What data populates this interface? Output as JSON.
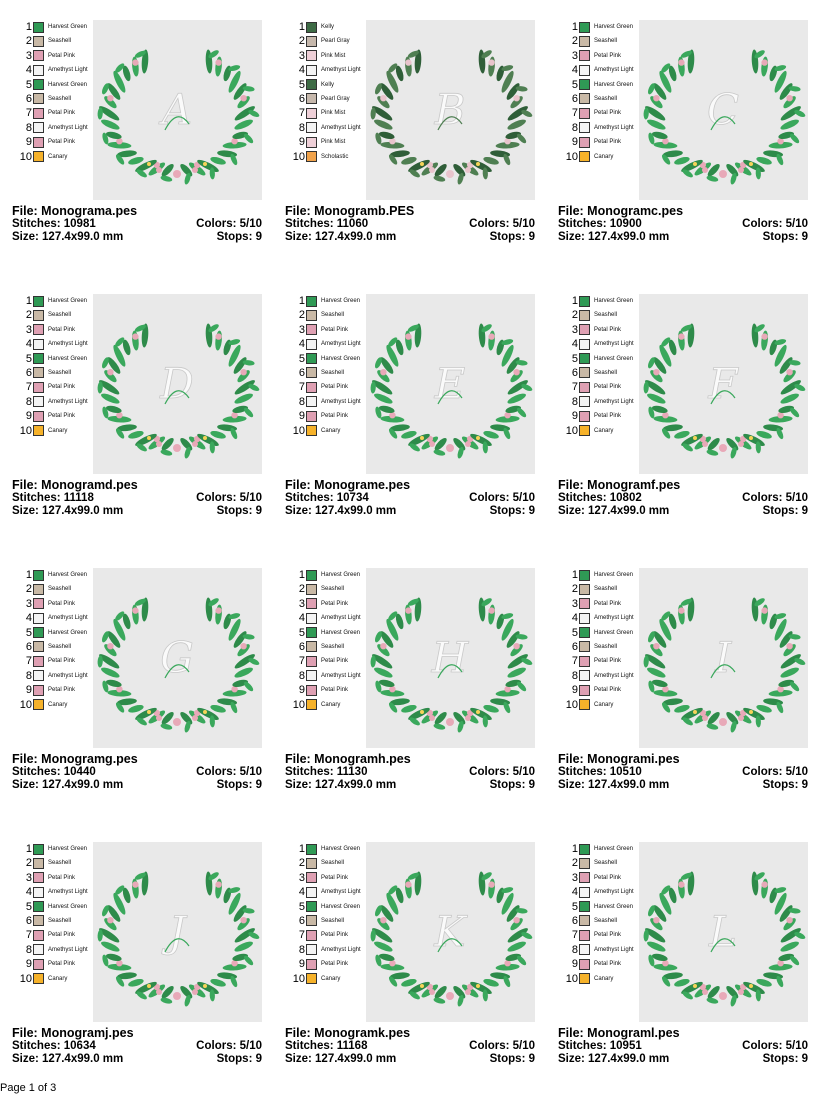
{
  "palette": {
    "Harvest Green": "#2f9a55",
    "Seashell": "#c9b9a6",
    "Petal Pink": "#dfa0b3",
    "Amethyst Light": "#f4f4f4",
    "Canary": "#f6b22a",
    "Kelly": "#3e6b45",
    "Pearl Gray": "#c6b8ac",
    "Pink Mist": "#efd0d8",
    "Scholastic": "#f0a24a"
  },
  "labels": {
    "file": "File: ",
    "stitches": "Stitches: ",
    "size": "Size: ",
    "colors": "Colors: ",
    "stops": "Stops: "
  },
  "standard_colors": [
    "Harvest Green",
    "Seashell",
    "Petal Pink",
    "Amethyst Light",
    "Harvest Green",
    "Seashell",
    "Petal Pink",
    "Amethyst Light",
    "Petal Pink",
    "Canary"
  ],
  "designs": [
    {
      "file": "Monograma.pes",
      "stitches": "10981",
      "size": "127.4x99.0 mm",
      "colors": "5/10",
      "stops": "9",
      "letter": "A",
      "thread_list": [
        "Harvest Green",
        "Seashell",
        "Petal Pink",
        "Amethyst Light",
        "Harvest Green",
        "Seashell",
        "Petal Pink",
        "Amethyst Light",
        "Petal Pink",
        "Canary"
      ]
    },
    {
      "file": "Monogramb.PES",
      "stitches": "11060",
      "size": "127.4x99.0 mm",
      "colors": "5/10",
      "stops": "9",
      "letter": "B",
      "thread_list": [
        "Kelly",
        "Pearl Gray",
        "Pink Mist",
        "Amethyst Light",
        "Kelly",
        "Pearl Gray",
        "Pink Mist",
        "Amethyst Light",
        "Pink Mist",
        "Scholastic"
      ]
    },
    {
      "file": "Monogramc.pes",
      "stitches": "10900",
      "size": "127.4x99.0 mm",
      "colors": "5/10",
      "stops": "9",
      "letter": "C",
      "thread_list": [
        "Harvest Green",
        "Seashell",
        "Petal Pink",
        "Amethyst Light",
        "Harvest Green",
        "Seashell",
        "Petal Pink",
        "Amethyst Light",
        "Petal Pink",
        "Canary"
      ]
    },
    {
      "file": "Monogramd.pes",
      "stitches": "11118",
      "size": "127.4x99.0 mm",
      "colors": "5/10",
      "stops": "9",
      "letter": "D",
      "thread_list": [
        "Harvest Green",
        "Seashell",
        "Petal Pink",
        "Amethyst Light",
        "Harvest Green",
        "Seashell",
        "Petal Pink",
        "Amethyst Light",
        "Petal Pink",
        "Canary"
      ]
    },
    {
      "file": "Monograme.pes",
      "stitches": "10734",
      "size": "127.4x99.0 mm",
      "colors": "5/10",
      "stops": "9",
      "letter": "E",
      "thread_list": [
        "Harvest Green",
        "Seashell",
        "Petal Pink",
        "Amethyst Light",
        "Harvest Green",
        "Seashell",
        "Petal Pink",
        "Amethyst Light",
        "Petal Pink",
        "Canary"
      ]
    },
    {
      "file": "Monogramf.pes",
      "stitches": "10802",
      "size": "127.4x99.0 mm",
      "colors": "5/10",
      "stops": "9",
      "letter": "F",
      "thread_list": [
        "Harvest Green",
        "Seashell",
        "Petal Pink",
        "Amethyst Light",
        "Harvest Green",
        "Seashell",
        "Petal Pink",
        "Amethyst Light",
        "Petal Pink",
        "Canary"
      ]
    },
    {
      "file": "Monogramg.pes",
      "stitches": "10440",
      "size": "127.4x99.0 mm",
      "colors": "5/10",
      "stops": "9",
      "letter": "G",
      "thread_list": [
        "Harvest Green",
        "Seashell",
        "Petal Pink",
        "Amethyst Light",
        "Harvest Green",
        "Seashell",
        "Petal Pink",
        "Amethyst Light",
        "Petal Pink",
        "Canary"
      ]
    },
    {
      "file": "Monogramh.pes",
      "stitches": "11130",
      "size": "127.4x99.0 mm",
      "colors": "5/10",
      "stops": "9",
      "letter": "H",
      "thread_list": [
        "Harvest Green",
        "Seashell",
        "Petal Pink",
        "Amethyst Light",
        "Harvest Green",
        "Seashell",
        "Petal Pink",
        "Amethyst Light",
        "Petal Pink",
        "Canary"
      ]
    },
    {
      "file": "Monogrami.pes",
      "stitches": "10510",
      "size": "127.4x99.0 mm",
      "colors": "5/10",
      "stops": "9",
      "letter": "I",
      "thread_list": [
        "Harvest Green",
        "Seashell",
        "Petal Pink",
        "Amethyst Light",
        "Harvest Green",
        "Seashell",
        "Petal Pink",
        "Amethyst Light",
        "Petal Pink",
        "Canary"
      ]
    },
    {
      "file": "Monogramj.pes",
      "stitches": "10634",
      "size": "127.4x99.0 mm",
      "colors": "5/10",
      "stops": "9",
      "letter": "J",
      "thread_list": [
        "Harvest Green",
        "Seashell",
        "Petal Pink",
        "Amethyst Light",
        "Harvest Green",
        "Seashell",
        "Petal Pink",
        "Amethyst Light",
        "Petal Pink",
        "Canary"
      ]
    },
    {
      "file": "Monogramk.pes",
      "stitches": "11168",
      "size": "127.4x99.0 mm",
      "colors": "5/10",
      "stops": "9",
      "letter": "K",
      "thread_list": [
        "Harvest Green",
        "Seashell",
        "Petal Pink",
        "Amethyst Light",
        "Harvest Green",
        "Seashell",
        "Petal Pink",
        "Amethyst Light",
        "Petal Pink",
        "Canary"
      ]
    },
    {
      "file": "Monograml.pes",
      "stitches": "10951",
      "size": "127.4x99.0 mm",
      "colors": "5/10",
      "stops": "9",
      "letter": "L",
      "thread_list": [
        "Harvest Green",
        "Seashell",
        "Petal Pink",
        "Amethyst Light",
        "Harvest Green",
        "Seashell",
        "Petal Pink",
        "Amethyst Light",
        "Petal Pink",
        "Canary"
      ]
    }
  ],
  "footer": {
    "page_text": "Page 1 of 3"
  }
}
